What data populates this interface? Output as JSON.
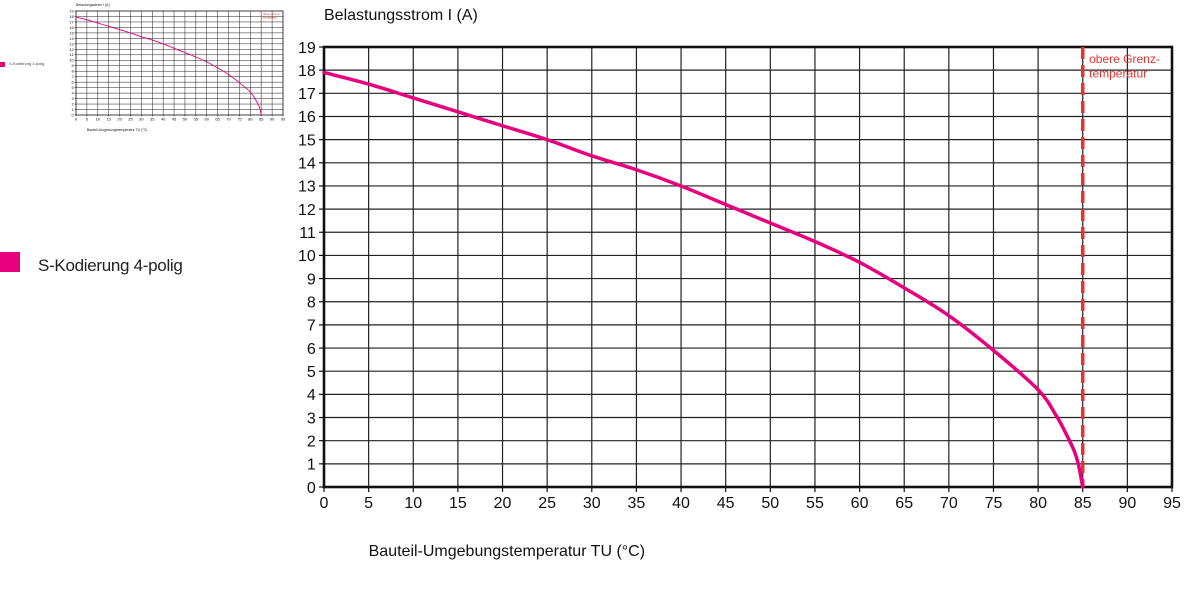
{
  "legend": {
    "label": "S-Kodierung 4-polig",
    "color": "#e6007e"
  },
  "annotation": {
    "line1": "obere Grenz-",
    "line2": "temperatur",
    "color": "#e53232"
  },
  "chart_data": {
    "type": "line",
    "ylabel": "Belastungsstrom I (A)",
    "xlabel": "Bauteil-Umgebungstemperatur TU (°C)",
    "xlim": [
      0,
      95
    ],
    "ylim": [
      0,
      19
    ],
    "x_ticks": [
      0,
      5,
      10,
      15,
      20,
      25,
      30,
      35,
      40,
      45,
      50,
      55,
      60,
      65,
      70,
      75,
      80,
      85,
      90,
      95
    ],
    "y_ticks": [
      0,
      1,
      2,
      3,
      4,
      5,
      6,
      7,
      8,
      9,
      10,
      11,
      12,
      13,
      14,
      15,
      16,
      17,
      18,
      19
    ],
    "grid": true,
    "limit_x": 85,
    "series": [
      {
        "name": "S-Kodierung 4-polig",
        "color": "#e6007e",
        "x": [
          0,
          5,
          10,
          15,
          20,
          25,
          30,
          35,
          40,
          45,
          50,
          55,
          60,
          65,
          70,
          75,
          80,
          82,
          83,
          84,
          84.5,
          85
        ],
        "y": [
          17.9,
          17.4,
          16.8,
          16.2,
          15.6,
          15.0,
          14.3,
          13.7,
          13.0,
          12.2,
          11.4,
          10.6,
          9.7,
          8.6,
          7.4,
          5.9,
          4.2,
          3.1,
          2.4,
          1.6,
          1.0,
          0.0
        ]
      }
    ]
  }
}
